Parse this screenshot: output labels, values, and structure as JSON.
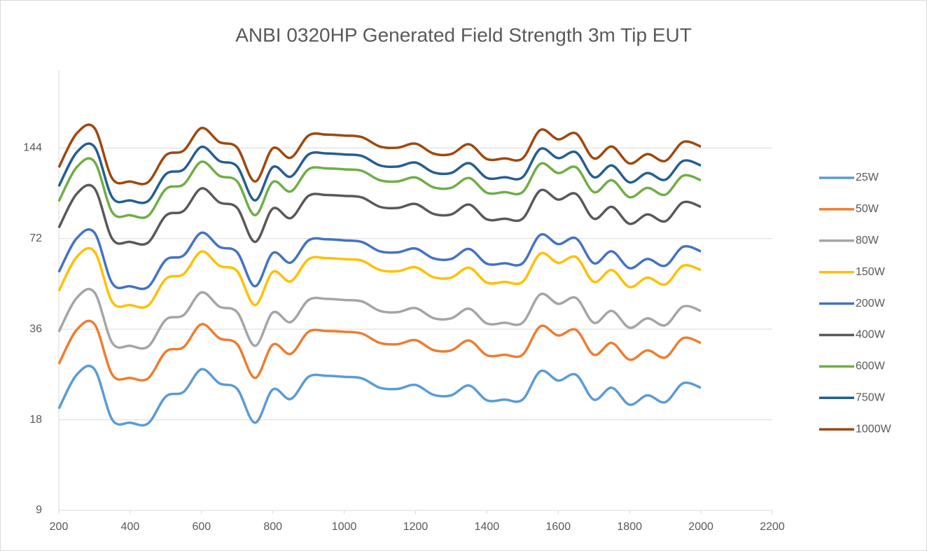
{
  "chart_data": {
    "type": "line",
    "title": "ANBI 0320HP Generated Field Strength 3m Tip EUT",
    "x": [
      200,
      250,
      300,
      350,
      400,
      450,
      500,
      550,
      600,
      650,
      700,
      750,
      800,
      850,
      900,
      950,
      1000,
      1050,
      1100,
      1150,
      1200,
      1250,
      1300,
      1350,
      1400,
      1450,
      1500,
      1550,
      1600,
      1650,
      1700,
      1750,
      1800,
      1850,
      1900,
      1950,
      2000
    ],
    "series": [
      {
        "name": "25W",
        "color": "#5b9bd5",
        "values": [
          19.6,
          25.4,
          26.5,
          18,
          17.6,
          17.5,
          21.5,
          22.3,
          26.5,
          23.8,
          22.8,
          17.6,
          22.7,
          21.1,
          25,
          25.2,
          25,
          24.7,
          23,
          22.8,
          23.5,
          21.8,
          21.7,
          23.4,
          20.9,
          21,
          21,
          26.1,
          24.3,
          25.4,
          21,
          23,
          20.2,
          21.7,
          20.6,
          23.8,
          23
        ]
      },
      {
        "name": "50W",
        "color": "#ed7d31",
        "values": [
          27.6,
          35.8,
          37.4,
          25.4,
          24.8,
          24.7,
          30.3,
          31.4,
          37.4,
          33.6,
          32.1,
          24.8,
          32,
          29.8,
          35.3,
          35.5,
          35.3,
          34.8,
          32.4,
          32.1,
          33.1,
          30.7,
          30.6,
          33,
          29.5,
          29.6,
          29.6,
          36.8,
          34.3,
          35.8,
          29.6,
          32.4,
          28.5,
          30.6,
          29,
          33.6,
          32.4
        ]
      },
      {
        "name": "80W",
        "color": "#a5a5a5",
        "values": [
          35.3,
          45.7,
          47.7,
          32.4,
          31.7,
          31.5,
          38.7,
          40.1,
          47.7,
          42.8,
          41,
          31.7,
          40.9,
          38,
          45,
          45.4,
          45,
          44.5,
          41.4,
          41,
          42.3,
          39.2,
          39.1,
          42.1,
          37.6,
          37.8,
          37.8,
          47,
          43.7,
          45.7,
          37.8,
          41.4,
          36.4,
          39.1,
          37.1,
          42.8,
          41.4
        ]
      },
      {
        "name": "150W",
        "color": "#ffc000",
        "values": [
          48.2,
          62.5,
          65.2,
          44.3,
          43.3,
          43.1,
          52.9,
          54.9,
          65.2,
          58.5,
          56.1,
          43.3,
          55.8,
          51.9,
          61.5,
          62,
          61.5,
          60.8,
          56.6,
          56.1,
          57.8,
          53.6,
          53.4,
          57.6,
          51.4,
          51.7,
          51.7,
          64.2,
          59.8,
          62.5,
          51.7,
          56.6,
          49.7,
          53.4,
          50.7,
          58.5,
          56.6
        ]
      },
      {
        "name": "200W",
        "color": "#4472c4",
        "values": [
          55.7,
          72.1,
          75.3,
          51.1,
          50,
          49.7,
          61.1,
          63.3,
          75.3,
          67.6,
          64.8,
          50,
          64.5,
          59.9,
          71,
          71.6,
          71,
          70.1,
          65.3,
          64.8,
          66.7,
          61.9,
          61.6,
          66.5,
          59.4,
          59.6,
          59.6,
          74.1,
          69,
          72.1,
          59.6,
          65.3,
          57.4,
          61.6,
          58.5,
          67.6,
          65.3
        ]
      },
      {
        "name": "400W",
        "color": "#595959",
        "values": [
          78.2,
          101.3,
          105.7,
          71.8,
          70.2,
          69.8,
          85.8,
          89,
          105.7,
          95,
          91,
          70.2,
          90.6,
          84.2,
          99.8,
          100.5,
          99.8,
          98.6,
          91.8,
          91,
          93.8,
          87,
          86.6,
          93.4,
          83.4,
          83.8,
          83.8,
          104.1,
          97,
          101.3,
          83.8,
          91.8,
          80.6,
          86.6,
          82.2,
          95,
          91.8
        ]
      },
      {
        "name": "600W",
        "color": "#70ad47",
        "values": [
          95.8,
          124.2,
          129.6,
          88,
          86.1,
          85.6,
          105.1,
          109,
          129.6,
          116.4,
          111.5,
          86.1,
          111,
          103.2,
          122.3,
          123.2,
          122.3,
          120.8,
          112.5,
          111.5,
          114.9,
          106.6,
          106.1,
          114.4,
          102.2,
          102.7,
          102.7,
          127.6,
          118.8,
          124.2,
          102.7,
          112.5,
          98.8,
          106.1,
          100.7,
          116.4,
          112.5
        ]
      },
      {
        "name": "750W",
        "color": "#255e91",
        "values": [
          107.4,
          139.2,
          145.2,
          98.6,
          96.4,
          95.9,
          117.8,
          122.2,
          145.2,
          130.4,
          124.9,
          96.4,
          124.4,
          115.6,
          137,
          138.1,
          137,
          135.4,
          126,
          124.9,
          128.8,
          119.5,
          118.9,
          128.2,
          114.5,
          115.1,
          115.1,
          143,
          133.2,
          139.2,
          115.1,
          126,
          110.7,
          118.9,
          112.9,
          130.4,
          126
        ]
      },
      {
        "name": "1000W",
        "color": "#9e480e",
        "values": [
          124.1,
          160.8,
          167.7,
          113.9,
          111.4,
          110.8,
          136.1,
          141.2,
          167.7,
          150.7,
          144.3,
          111.4,
          143.7,
          133.6,
          158.3,
          159.5,
          158.3,
          156.4,
          145.6,
          144.3,
          148.8,
          138,
          137.4,
          148.1,
          132.3,
          132.9,
          132.9,
          165.2,
          153.8,
          160.8,
          132.9,
          145.6,
          127.9,
          137.4,
          130.4,
          150.7,
          145.6
        ]
      }
    ],
    "xlim": [
      200,
      2200
    ],
    "xticks": [
      200,
      400,
      600,
      800,
      1000,
      1200,
      1400,
      1600,
      1800,
      2000,
      2200
    ],
    "ylim": [
      9,
      260
    ],
    "yticks": [
      9,
      18,
      36,
      72,
      144
    ],
    "ylog": true,
    "ylog_base": 2,
    "grid": true,
    "legend": "right"
  }
}
